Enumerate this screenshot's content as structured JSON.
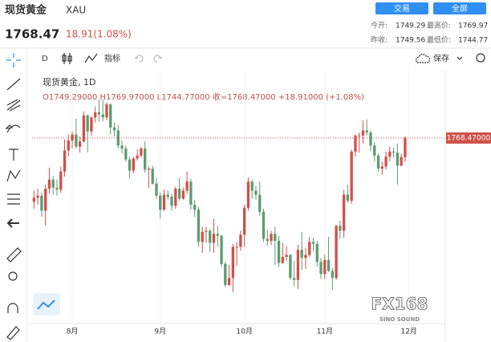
{
  "header": {
    "name": "现货黄金",
    "symbol": "XAU",
    "price": "1768.47",
    "change": "18.91(1.08%)",
    "buttons": [
      "交易",
      "全屏"
    ],
    "stats": [
      {
        "label": "今开:",
        "value": "1749.29"
      },
      {
        "label": "最高价:",
        "value": "1769.97"
      },
      {
        "label": "昨收:",
        "value": "1749.56"
      },
      {
        "label": "最低价:",
        "value": "1744.77"
      }
    ]
  },
  "toolbar": {
    "interval": "D",
    "indicators": "指标",
    "save": "保存"
  },
  "watermark": {
    "logo": "FX168",
    "tagline": "SINO SOUND"
  },
  "chart_data": {
    "type": "candlestick",
    "title": "现货黄金, 1D",
    "ohlc_label": "O1749.29000 H1769.97000 L1744.77000 收=1768.47000 +18.91000 (+1.08%)",
    "up_color": "#d0514b",
    "down_color": "#5e9c72",
    "grid": true,
    "xlim": [
      -0.5,
      107.5
    ],
    "ylim": [
      1586,
      1830
    ],
    "xticks": [
      {
        "value": 10,
        "label": "8月"
      },
      {
        "value": 33,
        "label": "9月"
      },
      {
        "value": 55,
        "label": "10月"
      },
      {
        "value": 76,
        "label": "11月"
      },
      {
        "value": 98,
        "label": "12月"
      }
    ],
    "last_price": {
      "value": 1768.47,
      "label": "1768.47000"
    },
    "candles": [
      [
        1705,
        1716,
        1698,
        1709
      ],
      [
        1709,
        1718,
        1702,
        1711
      ],
      [
        1711,
        1714,
        1690,
        1696
      ],
      [
        1696,
        1722,
        1681,
        1718
      ],
      [
        1718,
        1739,
        1713,
        1727
      ],
      [
        1727,
        1731,
        1712,
        1719
      ],
      [
        1719,
        1727,
        1711,
        1717
      ],
      [
        1717,
        1740,
        1714,
        1735
      ],
      [
        1735,
        1767,
        1730,
        1756
      ],
      [
        1756,
        1772,
        1750,
        1766
      ],
      [
        1766,
        1775,
        1758,
        1772
      ],
      [
        1772,
        1788,
        1758,
        1760
      ],
      [
        1760,
        1770,
        1754,
        1765
      ],
      [
        1765,
        1795,
        1764,
        1791
      ],
      [
        1791,
        1792,
        1754,
        1775
      ],
      [
        1775,
        1790,
        1771,
        1789
      ],
      [
        1789,
        1800,
        1784,
        1794
      ],
      [
        1794,
        1807,
        1785,
        1792
      ],
      [
        1792,
        1807,
        1785,
        1789
      ],
      [
        1789,
        1804,
        1786,
        1802
      ],
      [
        1802,
        1803,
        1772,
        1779
      ],
      [
        1779,
        1784,
        1770,
        1776
      ],
      [
        1776,
        1781,
        1758,
        1761
      ],
      [
        1761,
        1766,
        1753,
        1758
      ],
      [
        1758,
        1761,
        1745,
        1747
      ],
      [
        1747,
        1750,
        1728,
        1736
      ],
      [
        1736,
        1750,
        1733,
        1748
      ],
      [
        1748,
        1757,
        1746,
        1751
      ],
      [
        1751,
        1760,
        1749,
        1758
      ],
      [
        1758,
        1765,
        1734,
        1737
      ],
      [
        1737,
        1740,
        1719,
        1738
      ],
      [
        1738,
        1741,
        1722,
        1723
      ],
      [
        1723,
        1729,
        1708,
        1711
      ],
      [
        1711,
        1714,
        1688,
        1697
      ],
      [
        1697,
        1717,
        1696,
        1712
      ],
      [
        1712,
        1716,
        1707,
        1710
      ],
      [
        1710,
        1713,
        1696,
        1701
      ],
      [
        1701,
        1720,
        1698,
        1718
      ],
      [
        1718,
        1729,
        1706,
        1708
      ],
      [
        1708,
        1719,
        1707,
        1716
      ],
      [
        1716,
        1735,
        1713,
        1725
      ],
      [
        1725,
        1728,
        1697,
        1702
      ],
      [
        1702,
        1707,
        1690,
        1697
      ],
      [
        1697,
        1700,
        1660,
        1665
      ],
      [
        1665,
        1680,
        1654,
        1675
      ],
      [
        1675,
        1680,
        1664,
        1676
      ],
      [
        1676,
        1678,
        1655,
        1664
      ],
      [
        1664,
        1688,
        1654,
        1673
      ],
      [
        1673,
        1681,
        1660,
        1671
      ],
      [
        1671,
        1672,
        1640,
        1643
      ],
      [
        1643,
        1645,
        1620,
        1622
      ],
      [
        1622,
        1642,
        1621,
        1629
      ],
      [
        1629,
        1663,
        1615,
        1660
      ],
      [
        1660,
        1665,
        1641,
        1660
      ],
      [
        1660,
        1676,
        1656,
        1672
      ],
      [
        1672,
        1702,
        1660,
        1699
      ],
      [
        1699,
        1729,
        1696,
        1725
      ],
      [
        1725,
        1727,
        1708,
        1716
      ],
      [
        1716,
        1721,
        1707,
        1712
      ],
      [
        1712,
        1725,
        1691,
        1695
      ],
      [
        1695,
        1698,
        1665,
        1668
      ],
      [
        1668,
        1677,
        1661,
        1666
      ],
      [
        1666,
        1676,
        1662,
        1673
      ],
      [
        1673,
        1680,
        1642,
        1666
      ],
      [
        1666,
        1671,
        1640,
        1644
      ],
      [
        1644,
        1664,
        1643,
        1650
      ],
      [
        1650,
        1661,
        1646,
        1652
      ],
      [
        1652,
        1653,
        1627,
        1629
      ],
      [
        1629,
        1646,
        1621,
        1627
      ],
      [
        1627,
        1662,
        1618,
        1657
      ],
      [
        1657,
        1675,
        1637,
        1649
      ],
      [
        1649,
        1659,
        1638,
        1652
      ],
      [
        1652,
        1670,
        1650,
        1665
      ],
      [
        1665,
        1669,
        1656,
        1663
      ],
      [
        1663,
        1666,
        1640,
        1645
      ],
      [
        1645,
        1649,
        1628,
        1633
      ],
      [
        1633,
        1652,
        1628,
        1647
      ],
      [
        1647,
        1670,
        1635,
        1636
      ],
      [
        1636,
        1639,
        1617,
        1629
      ],
      [
        1629,
        1682,
        1627,
        1681
      ],
      [
        1681,
        1686,
        1668,
        1676
      ],
      [
        1676,
        1717,
        1669,
        1712
      ],
      [
        1712,
        1722,
        1704,
        1706
      ],
      [
        1706,
        1757,
        1703,
        1755
      ],
      [
        1755,
        1772,
        1750,
        1771
      ],
      [
        1771,
        1774,
        1754,
        1771
      ],
      [
        1771,
        1786,
        1763,
        1776
      ],
      [
        1776,
        1787,
        1771,
        1774
      ],
      [
        1774,
        1776,
        1755,
        1761
      ],
      [
        1761,
        1764,
        1745,
        1751
      ],
      [
        1751,
        1753,
        1735,
        1738
      ],
      [
        1738,
        1745,
        1732,
        1740
      ],
      [
        1740,
        1755,
        1737,
        1750
      ],
      [
        1750,
        1760,
        1745,
        1755
      ],
      [
        1755,
        1759,
        1749,
        1754
      ],
      [
        1754,
        1763,
        1722,
        1741
      ],
      [
        1741,
        1753,
        1740,
        1749.56
      ],
      [
        1749.29,
        1769.97,
        1744.77,
        1768.47
      ]
    ]
  }
}
